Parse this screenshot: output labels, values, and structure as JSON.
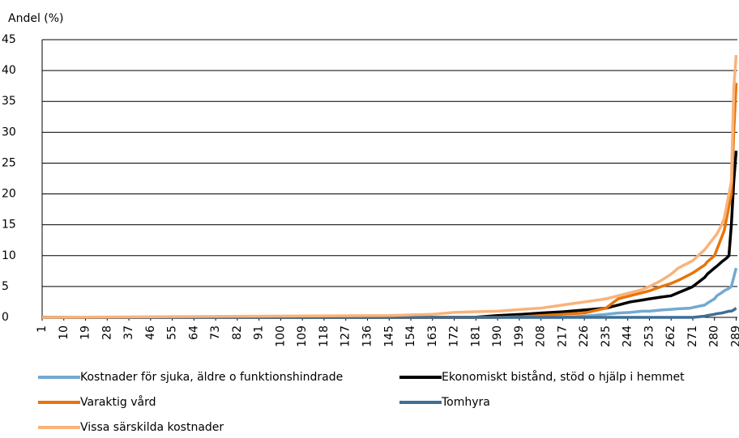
{
  "chart_data": {
    "type": "line",
    "y_label": "Andel (%)",
    "x": [
      1,
      145,
      163,
      172,
      180,
      190,
      200,
      208,
      217,
      226,
      235,
      240,
      245,
      250,
      253,
      258,
      262,
      265,
      270,
      271,
      276,
      277,
      280,
      281,
      283,
      284,
      285,
      286,
      287,
      288,
      289
    ],
    "series": [
      {
        "name": "Kostnader för sjuka, äldre o funktionshindrade",
        "color": "#74a9cf",
        "values": [
          0,
          0,
          0,
          0,
          0,
          0,
          0,
          0,
          0,
          0.2,
          0.5,
          0.7,
          0.8,
          1,
          1,
          1.2,
          1.3,
          1.4,
          1.5,
          1.6,
          2,
          2.3,
          3,
          3.5,
          4,
          4.3,
          4.5,
          4.7,
          5,
          6.5,
          8
        ]
      },
      {
        "name": "Ekonomiskt bistånd, stöd o hjälp i hemmet",
        "color": "#000000",
        "values": [
          0,
          0,
          0,
          0,
          0,
          0.3,
          0.5,
          0.7,
          0.9,
          1.2,
          1.5,
          2,
          2.5,
          2.8,
          3,
          3.3,
          3.5,
          4,
          4.8,
          5,
          6.5,
          7,
          8,
          8.3,
          9,
          9.3,
          9.6,
          10,
          15,
          22,
          27
        ]
      },
      {
        "name": "Varaktig vård",
        "color": "#e8740c",
        "values": [
          0,
          0,
          0,
          0,
          0,
          0,
          0.1,
          0.3,
          0.5,
          0.7,
          1.5,
          3,
          3.5,
          4,
          4.3,
          5,
          5.5,
          6,
          7,
          7.2,
          8.5,
          9,
          10,
          11,
          13,
          14,
          16,
          18,
          20,
          30,
          38
        ]
      },
      {
        "name": "Tomhyra",
        "color": "#3f6e96",
        "values": [
          0,
          0,
          0,
          0,
          0,
          0,
          0,
          0,
          0,
          0,
          0,
          0,
          0,
          0,
          0,
          0,
          0,
          0,
          0,
          0,
          0.2,
          0.3,
          0.5,
          0.6,
          0.7,
          0.8,
          0.9,
          1,
          1,
          1.2,
          1.5
        ]
      },
      {
        "name": "Vissa särskilda kostnader",
        "color": "#f9b37a",
        "values": [
          0,
          0.3,
          0.5,
          0.8,
          0.9,
          1,
          1.3,
          1.5,
          2,
          2.5,
          3,
          3.5,
          4,
          4.5,
          5,
          6,
          7,
          8,
          9,
          9.2,
          11,
          11.5,
          13,
          13.5,
          15,
          16,
          18,
          20,
          22,
          37,
          42.5
        ]
      }
    ],
    "xlim": [
      1,
      289.5
    ],
    "xticks": [
      1,
      10,
      19,
      28,
      37,
      46,
      55,
      64,
      73,
      82,
      91,
      100,
      109,
      118,
      127,
      136,
      145,
      154,
      163,
      172,
      181,
      190,
      199,
      208,
      217,
      226,
      235,
      244,
      253,
      262,
      271,
      280,
      289
    ],
    "ylim": [
      0,
      45
    ],
    "yticks": [
      0,
      5,
      10,
      15,
      20,
      25,
      30,
      35,
      40,
      45
    ],
    "grid": true,
    "legend": "bottom"
  }
}
